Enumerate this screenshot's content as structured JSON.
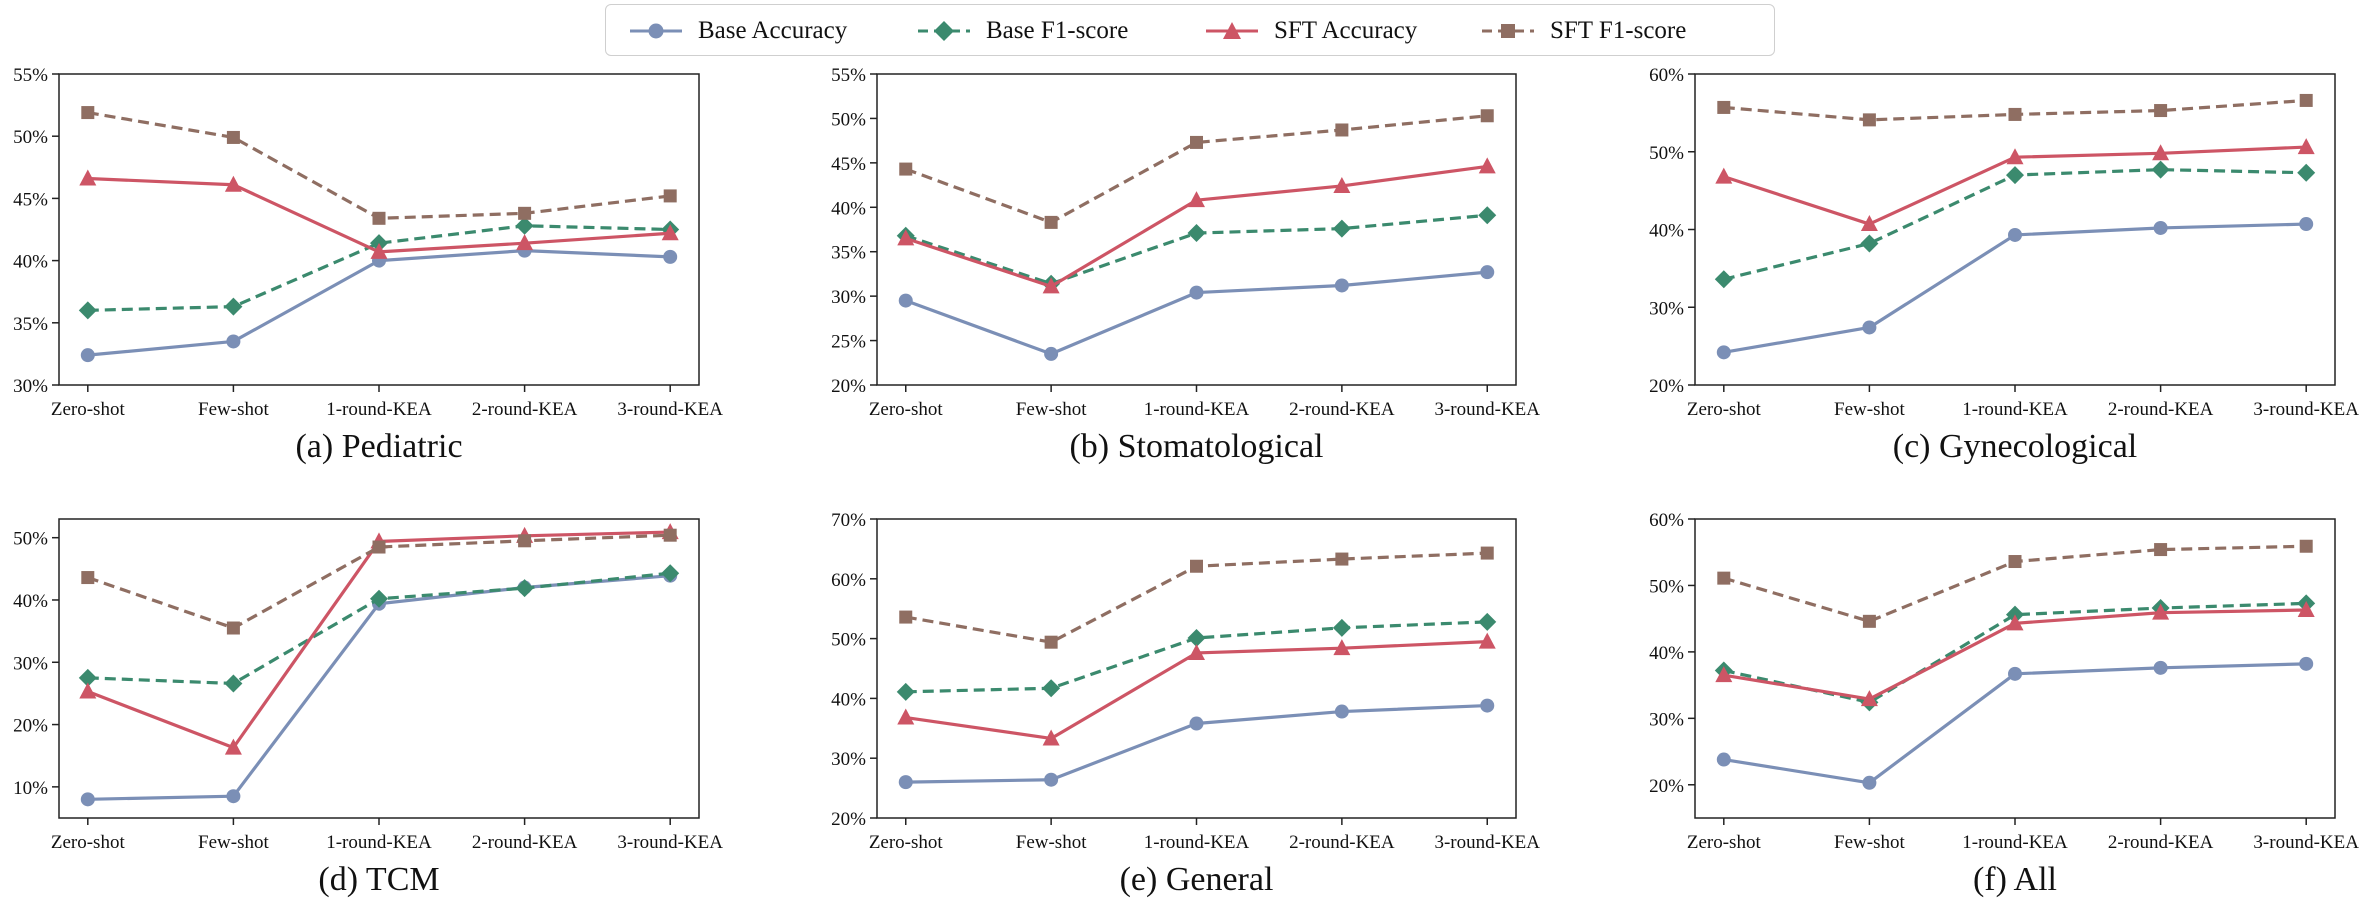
{
  "legend": {
    "items": [
      {
        "label": "Base Accuracy",
        "color": "#7b8fb6",
        "marker": "circle",
        "dash": false
      },
      {
        "label": "Base F1-score",
        "color": "#3b8a6e",
        "marker": "diamond",
        "dash": true
      },
      {
        "label": "SFT Accuracy",
        "color": "#cd5565",
        "marker": "triangle",
        "dash": false
      },
      {
        "label": "SFT F1-score",
        "color": "#8f6e62",
        "marker": "square",
        "dash": true
      }
    ]
  },
  "chart_data": [
    {
      "type": "line",
      "caption": "(a) Pediatric",
      "categories": [
        "Zero-shot",
        "Few-shot",
        "1-round-KEA",
        "2-round-KEA",
        "3-round-KEA"
      ],
      "ylim": [
        30,
        55
      ],
      "yticks": [
        30,
        35,
        40,
        45,
        50,
        55
      ],
      "ytick_labels": [
        "30%",
        "35%",
        "40%",
        "45%",
        "50%",
        "55%"
      ],
      "series": [
        {
          "name": "Base Accuracy",
          "values": [
            32.4,
            33.5,
            40.0,
            40.8,
            40.3
          ]
        },
        {
          "name": "Base F1-score",
          "values": [
            36.0,
            36.3,
            41.4,
            42.8,
            42.5
          ]
        },
        {
          "name": "SFT Accuracy",
          "values": [
            46.6,
            46.1,
            40.7,
            41.4,
            42.2
          ]
        },
        {
          "name": "SFT F1-score",
          "values": [
            51.9,
            49.9,
            43.4,
            43.8,
            45.2
          ]
        }
      ]
    },
    {
      "type": "line",
      "caption": "(b) Stomatological",
      "categories": [
        "Zero-shot",
        "Few-shot",
        "1-round-KEA",
        "2-round-KEA",
        "3-round-KEA"
      ],
      "ylim": [
        20,
        55
      ],
      "yticks": [
        20,
        25,
        30,
        35,
        40,
        45,
        50,
        55
      ],
      "ytick_labels": [
        "20%",
        "25%",
        "30%",
        "35%",
        "40%",
        "45%",
        "50%",
        "55%"
      ],
      "series": [
        {
          "name": "Base Accuracy",
          "values": [
            29.5,
            23.5,
            30.4,
            31.2,
            32.7
          ]
        },
        {
          "name": "Base F1-score",
          "values": [
            36.8,
            31.4,
            37.1,
            37.6,
            39.1
          ]
        },
        {
          "name": "SFT Accuracy",
          "values": [
            36.5,
            31.1,
            40.8,
            42.4,
            44.6
          ]
        },
        {
          "name": "SFT F1-score",
          "values": [
            44.3,
            38.3,
            47.3,
            48.7,
            50.3
          ]
        }
      ]
    },
    {
      "type": "line",
      "caption": "(c) Gynecological",
      "categories": [
        "Zero-shot",
        "Few-shot",
        "1-round-KEA",
        "2-round-KEA",
        "3-round-KEA"
      ],
      "ylim": [
        20,
        60
      ],
      "yticks": [
        20,
        30,
        40,
        50,
        60
      ],
      "ytick_labels": [
        "20%",
        "30%",
        "40%",
        "50%",
        "60%"
      ],
      "series": [
        {
          "name": "Base Accuracy",
          "values": [
            24.2,
            27.4,
            39.3,
            40.2,
            40.7
          ]
        },
        {
          "name": "Base F1-score",
          "values": [
            33.6,
            38.2,
            47.0,
            47.7,
            47.3
          ]
        },
        {
          "name": "SFT Accuracy",
          "values": [
            46.8,
            40.7,
            49.3,
            49.8,
            50.6
          ]
        },
        {
          "name": "SFT F1-score",
          "values": [
            55.7,
            54.1,
            54.8,
            55.3,
            56.6
          ]
        }
      ]
    },
    {
      "type": "line",
      "caption": "(d) TCM",
      "categories": [
        "Zero-shot",
        "Few-shot",
        "1-round-KEA",
        "2-round-KEA",
        "3-round-KEA"
      ],
      "ylim": [
        5,
        53
      ],
      "yticks": [
        10,
        20,
        30,
        40,
        50
      ],
      "ytick_labels": [
        "10%",
        "20%",
        "30%",
        "40%",
        "50%"
      ],
      "series": [
        {
          "name": "Base Accuracy",
          "values": [
            8.0,
            8.5,
            39.4,
            42.0,
            43.9
          ]
        },
        {
          "name": "Base F1-score",
          "values": [
            27.5,
            26.6,
            40.2,
            41.9,
            44.3
          ]
        },
        {
          "name": "SFT Accuracy",
          "values": [
            25.3,
            16.3,
            49.4,
            50.3,
            50.9
          ]
        },
        {
          "name": "SFT F1-score",
          "values": [
            43.6,
            35.5,
            48.5,
            49.5,
            50.4
          ]
        }
      ]
    },
    {
      "type": "line",
      "caption": "(e) General",
      "categories": [
        "Zero-shot",
        "Few-shot",
        "1-round-KEA",
        "2-round-KEA",
        "3-round-KEA"
      ],
      "ylim": [
        20,
        70
      ],
      "yticks": [
        20,
        30,
        40,
        50,
        60,
        70
      ],
      "ytick_labels": [
        "20%",
        "30%",
        "40%",
        "50%",
        "60%",
        "70%"
      ],
      "series": [
        {
          "name": "Base Accuracy",
          "values": [
            26.0,
            26.4,
            35.8,
            37.8,
            38.8
          ]
        },
        {
          "name": "Base F1-score",
          "values": [
            41.1,
            41.7,
            50.1,
            51.8,
            52.8
          ]
        },
        {
          "name": "SFT Accuracy",
          "values": [
            36.8,
            33.3,
            47.6,
            48.4,
            49.5
          ]
        },
        {
          "name": "SFT F1-score",
          "values": [
            53.6,
            49.4,
            62.1,
            63.3,
            64.3
          ]
        }
      ]
    },
    {
      "type": "line",
      "caption": "(f) All",
      "categories": [
        "Zero-shot",
        "Few-shot",
        "1-round-KEA",
        "2-round-KEA",
        "3-round-KEA"
      ],
      "ylim": [
        15,
        60
      ],
      "yticks": [
        20,
        30,
        40,
        50,
        60
      ],
      "ytick_labels": [
        "20%",
        "30%",
        "40%",
        "50%",
        "60%"
      ],
      "series": [
        {
          "name": "Base Accuracy",
          "values": [
            23.8,
            20.3,
            36.7,
            37.6,
            38.2
          ]
        },
        {
          "name": "Base F1-score",
          "values": [
            37.2,
            32.4,
            45.6,
            46.6,
            47.3
          ]
        },
        {
          "name": "SFT Accuracy",
          "values": [
            36.5,
            32.9,
            44.3,
            45.9,
            46.3
          ]
        },
        {
          "name": "SFT F1-score",
          "values": [
            51.1,
            44.6,
            53.6,
            55.4,
            55.9
          ]
        }
      ]
    }
  ]
}
